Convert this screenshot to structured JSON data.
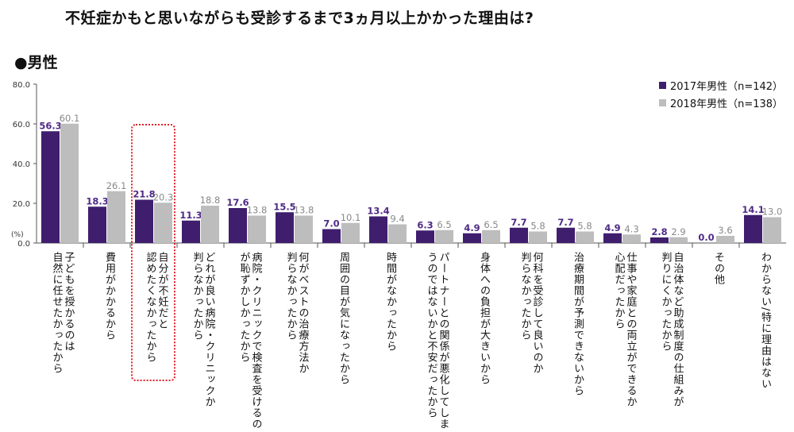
{
  "title": "不妊症かもと思いながらも受診するまで3ヵ月以上かかった理由は?",
  "section_label": "●男性",
  "colors": {
    "s2017": "#3f1e6e",
    "s2018": "#bdbdbd",
    "label2017": "#4f2a86",
    "label2018": "#888888",
    "highlight": "#e0202a"
  },
  "chart_data": {
    "type": "bar",
    "ylim": [
      0,
      80
    ],
    "yticks": [
      "80.0",
      "60.0",
      "40.0",
      "20.0",
      "0.0"
    ],
    "ylabel": "(%)",
    "legend_position": "top-right",
    "categories": [
      "子どもを授かるのは\n自然に任せたかったから",
      "費用がかかるから",
      "自分が不妊だと\n認めたくなかったから",
      "どれが良い病院・クリニックか\n判らなかったから",
      "病院・クリニックで検査を受けるの\nが恥ずかしかったから",
      "何がベストの治療方法か\n判らなかったから",
      "周囲の目が気になったから",
      "時間がなかったから",
      "パートナーとの関係が悪化してしま\nうのではないかと不安だったから",
      "身体への負担が大きいから",
      "何科を受診して良いのか\n判らなかったから",
      "治療期間が予測できないから",
      "仕事や家庭との両立ができるか\n心配だったから",
      "自治体など助成制度の仕組みが\n判りにくかったから",
      "その他",
      "わからない/特に理由はない"
    ],
    "series": [
      {
        "name": "2017年男性（n=142）",
        "values": [
          56.3,
          18.3,
          21.8,
          11.3,
          17.6,
          15.5,
          7.0,
          13.4,
          6.3,
          4.9,
          7.7,
          7.7,
          4.9,
          2.8,
          0.0,
          14.1
        ]
      },
      {
        "name": "2018年男性（n=138）",
        "values": [
          60.1,
          26.1,
          20.3,
          18.8,
          13.8,
          13.8,
          10.1,
          9.4,
          6.5,
          6.5,
          5.8,
          5.8,
          4.3,
          2.9,
          3.6,
          13.0
        ]
      }
    ],
    "highlighted_category_index": 2
  }
}
